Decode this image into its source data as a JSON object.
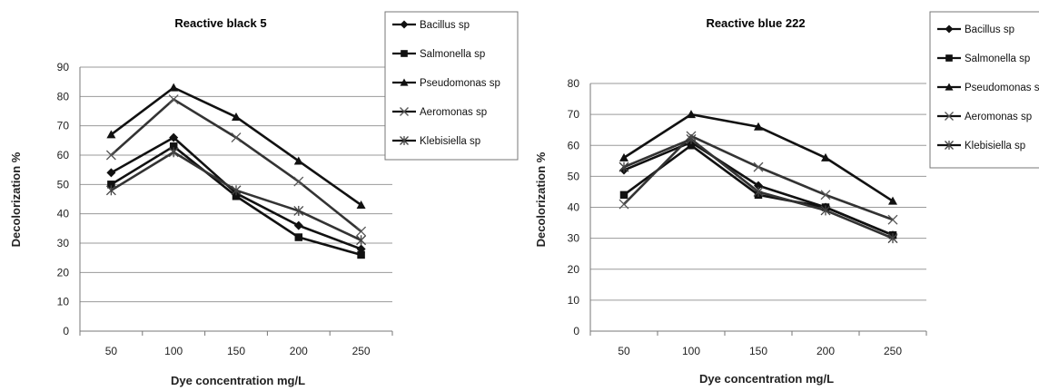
{
  "chart_data": [
    {
      "type": "line",
      "title": "Reactive black 5",
      "xlabel": "Dye concentration mg/L",
      "ylabel": "Decolorization %",
      "categories": [
        "50",
        "100",
        "150",
        "200",
        "250"
      ],
      "ylim": [
        0,
        90
      ],
      "yticks": [
        0,
        10,
        20,
        30,
        40,
        50,
        60,
        70,
        80,
        90
      ],
      "grid": true,
      "legend": "top-right",
      "series": [
        {
          "name": "Bacillus sp",
          "marker": "diamond",
          "values": [
            54,
            66,
            47,
            36,
            28
          ]
        },
        {
          "name": "Salmonella sp",
          "marker": "square",
          "values": [
            50,
            63,
            46,
            32,
            26
          ]
        },
        {
          "name": "Pseudomonas sp",
          "marker": "triangle",
          "values": [
            67,
            83,
            73,
            58,
            43
          ]
        },
        {
          "name": "Aeromonas sp",
          "marker": "x",
          "values": [
            60,
            79,
            66,
            51,
            34
          ]
        },
        {
          "name": "Klebisiella sp",
          "marker": "asterisk",
          "values": [
            48,
            61,
            48,
            41,
            31
          ]
        }
      ]
    },
    {
      "type": "line",
      "title": "Reactive blue 222",
      "xlabel": "Dye concentration mg/L",
      "ylabel": "Decolorization %",
      "categories": [
        "50",
        "100",
        "150",
        "200",
        "250"
      ],
      "ylim": [
        0,
        80
      ],
      "yticks": [
        0,
        10,
        20,
        30,
        40,
        50,
        60,
        70,
        80
      ],
      "grid": true,
      "legend": "top-right",
      "series": [
        {
          "name": "Bacillus sp",
          "marker": "diamond",
          "values": [
            52,
            61,
            47,
            40,
            31
          ]
        },
        {
          "name": "Salmonella sp",
          "marker": "square",
          "values": [
            44,
            60,
            44,
            40,
            31
          ]
        },
        {
          "name": "Pseudomonas s",
          "marker": "triangle",
          "values": [
            56,
            70,
            66,
            56,
            42
          ]
        },
        {
          "name": "Aeromonas sp",
          "marker": "x",
          "values": [
            41,
            63,
            53,
            44,
            36
          ]
        },
        {
          "name": "Klebisiella sp",
          "marker": "asterisk",
          "values": [
            53,
            62,
            45,
            39,
            30
          ]
        }
      ]
    }
  ]
}
